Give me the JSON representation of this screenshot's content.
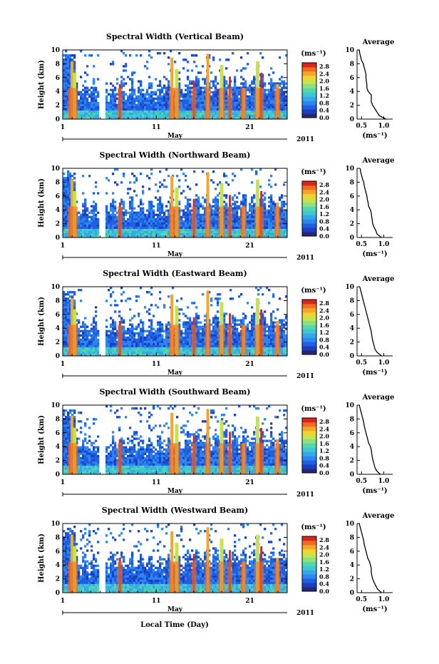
{
  "figure": {
    "xlabel": "Local Time (Day)"
  },
  "colors": {
    "colormap": [
      "#27277a",
      "#1a3fbf",
      "#1f5fe0",
      "#2b86f0",
      "#35a9e8",
      "#3cc7d1",
      "#58d6a8",
      "#8fe07a",
      "#c9e24a",
      "#f2d22f",
      "#f7a52a",
      "#f36a23",
      "#d8261d"
    ]
  },
  "chart_data": [
    {
      "type": "heatmap",
      "title": "Spectral Width (Vertical Beam)",
      "ylabel": "Height (km)",
      "yticks": [
        "0",
        "2",
        "4",
        "6",
        "8",
        "10"
      ],
      "ylim": [
        0,
        10
      ],
      "xticks": [
        "1",
        "11",
        "21"
      ],
      "xlim": [
        1,
        25
      ],
      "month_label": "May",
      "year_label": "2011",
      "colorbar": {
        "unit": "(ms⁻¹)",
        "ticks": [
          "0.0",
          "0.4",
          "0.8",
          "1.2",
          "1.6",
          "2.0",
          "2.4",
          "2.8"
        ],
        "range": [
          0.0,
          3.0
        ]
      },
      "average": {
        "title": "Average",
        "xlabel": "(ms⁻¹)",
        "xticks": [
          "0.5",
          "1.0"
        ],
        "xlim": [
          0.4,
          1.2
        ],
        "yticks": [
          "0",
          "2",
          "4",
          "6",
          "8",
          "10"
        ],
        "profile": [
          [
            0.0,
            1.05
          ],
          [
            0.5,
            0.9
          ],
          [
            1.0,
            0.85
          ],
          [
            1.5,
            0.8
          ],
          [
            2.0,
            0.75
          ],
          [
            2.5,
            0.72
          ],
          [
            3.0,
            0.72
          ],
          [
            3.5,
            0.72
          ],
          [
            4.0,
            0.65
          ],
          [
            4.5,
            0.62
          ],
          [
            5.0,
            0.62
          ],
          [
            5.5,
            0.61
          ],
          [
            6.0,
            0.6
          ],
          [
            6.5,
            0.6
          ],
          [
            7.0,
            0.58
          ],
          [
            7.5,
            0.56
          ],
          [
            8.0,
            0.54
          ],
          [
            8.5,
            0.5
          ],
          [
            9.0,
            0.48
          ],
          [
            9.5,
            0.46
          ],
          [
            10.0,
            0.45
          ]
        ]
      }
    },
    {
      "type": "heatmap",
      "title": "Spectral Width (Northward Beam)",
      "ylabel": "Height (km)",
      "yticks": [
        "0",
        "2",
        "4",
        "6",
        "8",
        "10"
      ],
      "ylim": [
        0,
        10
      ],
      "xticks": [
        "1",
        "11",
        "21"
      ],
      "xlim": [
        1,
        25
      ],
      "month_label": "May",
      "year_label": "2011",
      "colorbar": {
        "unit": "(ms⁻¹)",
        "ticks": [
          "0.0",
          "0.4",
          "0.8",
          "1.2",
          "1.6",
          "2.0",
          "2.4",
          "2.8"
        ],
        "range": [
          0.0,
          3.0
        ]
      },
      "average": {
        "title": "Average",
        "xlabel": "(ms⁻¹)",
        "xticks": [
          "0.5",
          "1.0"
        ],
        "xlim": [
          0.4,
          1.2
        ],
        "yticks": [
          "0",
          "2",
          "4",
          "6",
          "8",
          "10"
        ],
        "profile": [
          [
            0.0,
            0.95
          ],
          [
            0.5,
            0.85
          ],
          [
            1.0,
            0.82
          ],
          [
            1.5,
            0.78
          ],
          [
            2.0,
            0.75
          ],
          [
            2.5,
            0.74
          ],
          [
            3.0,
            0.73
          ],
          [
            3.5,
            0.72
          ],
          [
            4.0,
            0.7
          ],
          [
            4.5,
            0.66
          ],
          [
            5.0,
            0.65
          ],
          [
            5.5,
            0.63
          ],
          [
            6.0,
            0.62
          ],
          [
            6.5,
            0.6
          ],
          [
            7.0,
            0.58
          ],
          [
            7.5,
            0.56
          ],
          [
            8.0,
            0.55
          ],
          [
            8.5,
            0.52
          ],
          [
            9.0,
            0.5
          ],
          [
            9.5,
            0.48
          ],
          [
            10.0,
            0.47
          ]
        ]
      }
    },
    {
      "type": "heatmap",
      "title": "Spectral Width (Eastward Beam)",
      "ylabel": "Height (km)",
      "yticks": [
        "0",
        "2",
        "4",
        "6",
        "8",
        "10"
      ],
      "ylim": [
        0,
        10
      ],
      "xticks": [
        "1",
        "11",
        "21"
      ],
      "xlim": [
        1,
        25
      ],
      "month_label": "May",
      "year_label": "2011",
      "colorbar": {
        "unit": "(ms⁻¹)",
        "ticks": [
          "0.0",
          "0.4",
          "0.8",
          "1.2",
          "1.6",
          "2.0",
          "2.4",
          "2.8"
        ],
        "range": [
          0.0,
          3.0
        ]
      },
      "average": {
        "title": "Average",
        "xlabel": "(ms⁻¹)",
        "xticks": [
          "0.5",
          "1.0"
        ],
        "xlim": [
          0.4,
          1.2
        ],
        "yticks": [
          "0",
          "2",
          "4",
          "6",
          "8",
          "10"
        ],
        "profile": [
          [
            0.0,
            0.95
          ],
          [
            0.5,
            0.85
          ],
          [
            1.0,
            0.8
          ],
          [
            1.5,
            0.78
          ],
          [
            2.0,
            0.76
          ],
          [
            2.5,
            0.74
          ],
          [
            3.0,
            0.73
          ],
          [
            3.5,
            0.72
          ],
          [
            4.0,
            0.7
          ],
          [
            4.5,
            0.68
          ],
          [
            5.0,
            0.66
          ],
          [
            5.5,
            0.64
          ],
          [
            6.0,
            0.62
          ],
          [
            6.5,
            0.6
          ],
          [
            7.0,
            0.58
          ],
          [
            7.5,
            0.56
          ],
          [
            8.0,
            0.54
          ],
          [
            8.5,
            0.52
          ],
          [
            9.0,
            0.5
          ],
          [
            9.5,
            0.48
          ],
          [
            10.0,
            0.46
          ]
        ]
      }
    },
    {
      "type": "heatmap",
      "title": "Spectral Width (Southward Beam)",
      "ylabel": "Height (km)",
      "yticks": [
        "0",
        "2",
        "4",
        "6",
        "8",
        "10"
      ],
      "ylim": [
        0,
        10
      ],
      "xticks": [
        "1",
        "11",
        "21"
      ],
      "xlim": [
        1,
        25
      ],
      "month_label": "May",
      "year_label": "2011",
      "colorbar": {
        "unit": "(ms⁻¹)",
        "ticks": [
          "0.0",
          "0.4",
          "0.8",
          "1.2",
          "1.6",
          "2.0",
          "2.4",
          "2.8"
        ],
        "range": [
          0.0,
          3.0
        ]
      },
      "average": {
        "title": "Average",
        "xlabel": "(ms⁻¹)",
        "xticks": [
          "0.5",
          "1.0"
        ],
        "xlim": [
          0.4,
          1.2
        ],
        "yticks": [
          "0",
          "2",
          "4",
          "6",
          "8",
          "10"
        ],
        "profile": [
          [
            0.0,
            0.92
          ],
          [
            0.5,
            0.84
          ],
          [
            1.0,
            0.8
          ],
          [
            1.5,
            0.78
          ],
          [
            2.0,
            0.76
          ],
          [
            2.5,
            0.74
          ],
          [
            3.0,
            0.73
          ],
          [
            3.5,
            0.72
          ],
          [
            4.0,
            0.7
          ],
          [
            4.5,
            0.66
          ],
          [
            5.0,
            0.64
          ],
          [
            5.5,
            0.62
          ],
          [
            6.0,
            0.6
          ],
          [
            6.5,
            0.58
          ],
          [
            7.0,
            0.56
          ],
          [
            7.5,
            0.55
          ],
          [
            8.0,
            0.53
          ],
          [
            8.5,
            0.51
          ],
          [
            9.0,
            0.49
          ],
          [
            9.5,
            0.47
          ],
          [
            10.0,
            0.45
          ]
        ]
      }
    },
    {
      "type": "heatmap",
      "title": "Spectral Width (Westward Beam)",
      "ylabel": "Height (km)",
      "yticks": [
        "0",
        "2",
        "4",
        "6",
        "8",
        "10"
      ],
      "ylim": [
        0,
        10
      ],
      "xticks": [
        "1",
        "11",
        "21"
      ],
      "xlim": [
        1,
        25
      ],
      "month_label": "May",
      "year_label": "2011",
      "colorbar": {
        "unit": "(ms⁻¹)",
        "ticks": [
          "0.0",
          "0.4",
          "0.8",
          "1.2",
          "1.6",
          "2.0",
          "2.4",
          "2.8"
        ],
        "range": [
          0.0,
          3.0
        ]
      },
      "average": {
        "title": "Average",
        "xlabel": "(ms⁻¹)",
        "xticks": [
          "0.5",
          "1.0"
        ],
        "xlim": [
          0.4,
          1.2
        ],
        "yticks": [
          "0",
          "2",
          "4",
          "6",
          "8",
          "10"
        ],
        "profile": [
          [
            0.0,
            0.95
          ],
          [
            0.5,
            0.86
          ],
          [
            1.0,
            0.82
          ],
          [
            1.5,
            0.78
          ],
          [
            2.0,
            0.75
          ],
          [
            2.5,
            0.73
          ],
          [
            3.0,
            0.72
          ],
          [
            3.5,
            0.72
          ],
          [
            4.0,
            0.7
          ],
          [
            4.5,
            0.68
          ],
          [
            5.0,
            0.64
          ],
          [
            5.5,
            0.62
          ],
          [
            6.0,
            0.6
          ],
          [
            6.5,
            0.58
          ],
          [
            7.0,
            0.56
          ],
          [
            7.5,
            0.55
          ],
          [
            8.0,
            0.53
          ],
          [
            8.5,
            0.51
          ],
          [
            9.0,
            0.49
          ],
          [
            9.5,
            0.47
          ],
          [
            10.0,
            0.45
          ]
        ]
      }
    }
  ]
}
